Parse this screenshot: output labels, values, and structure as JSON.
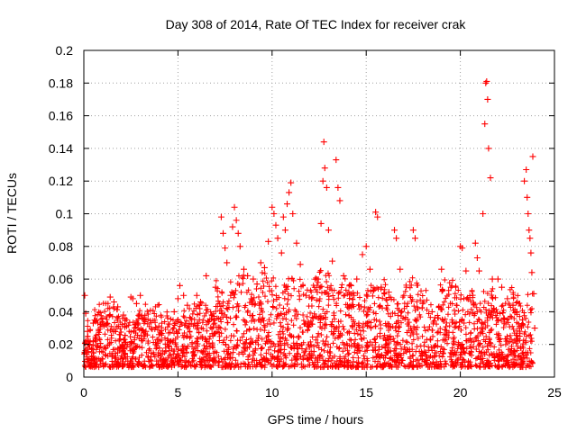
{
  "chart_data": {
    "type": "scatter",
    "title": "Day 308 of 2014, Rate Of TEC Index for receiver crak",
    "xlabel": "GPS time / hours",
    "ylabel": "ROTI / TECUs",
    "xlim": [
      0,
      25
    ],
    "ylim": [
      0,
      0.2
    ],
    "xticks": [
      0,
      5,
      10,
      15,
      20,
      25
    ],
    "xtick_labels": [
      "0",
      "5",
      "10",
      "15",
      "20",
      "25"
    ],
    "yticks": [
      0,
      0.02,
      0.04,
      0.06,
      0.08,
      0.1,
      0.12,
      0.14,
      0.16,
      0.18,
      0.2
    ],
    "ytick_labels": [
      "0",
      "0.02",
      "0.04",
      "0.06",
      "0.08",
      "0.1",
      "0.12",
      "0.14",
      "0.16",
      "0.18",
      "0.2"
    ],
    "grid": true,
    "marker": "+",
    "series": [
      {
        "name": "ROTI",
        "color": "#ff0000",
        "points": [
          [
            0.05,
            0.05
          ],
          [
            0.1,
            0.039
          ],
          [
            0.2,
            0.028
          ],
          [
            0.3,
            0.02
          ],
          [
            0.5,
            0.033
          ],
          [
            1.0,
            0.036
          ],
          [
            1.2,
            0.032
          ],
          [
            1.4,
            0.049
          ],
          [
            1.6,
            0.046
          ],
          [
            1.8,
            0.043
          ],
          [
            2.1,
            0.038
          ],
          [
            2.5,
            0.049
          ],
          [
            2.6,
            0.048
          ],
          [
            2.8,
            0.045
          ],
          [
            3.0,
            0.05
          ],
          [
            3.3,
            0.028
          ],
          [
            4.0,
            0.026
          ],
          [
            4.5,
            0.027
          ],
          [
            4.8,
            0.04
          ],
          [
            5.0,
            0.048
          ],
          [
            5.1,
            0.056
          ],
          [
            5.3,
            0.05
          ],
          [
            5.5,
            0.044
          ],
          [
            6.0,
            0.05
          ],
          [
            6.2,
            0.046
          ],
          [
            6.5,
            0.062
          ],
          [
            7.0,
            0.055
          ],
          [
            7.2,
            0.045
          ],
          [
            7.3,
            0.098
          ],
          [
            7.4,
            0.088
          ],
          [
            7.5,
            0.079
          ],
          [
            7.6,
            0.07
          ],
          [
            7.8,
            0.05
          ],
          [
            7.9,
            0.092
          ],
          [
            8.0,
            0.104
          ],
          [
            8.1,
            0.096
          ],
          [
            8.2,
            0.088
          ],
          [
            8.3,
            0.08
          ],
          [
            8.5,
            0.066
          ],
          [
            8.7,
            0.062
          ],
          [
            9.0,
            0.06
          ],
          [
            9.2,
            0.057
          ],
          [
            9.4,
            0.07
          ],
          [
            9.6,
            0.067
          ],
          [
            9.8,
            0.083
          ],
          [
            10.0,
            0.104
          ],
          [
            10.1,
            0.1
          ],
          [
            10.2,
            0.093
          ],
          [
            10.3,
            0.085
          ],
          [
            10.5,
            0.076
          ],
          [
            10.6,
            0.098
          ],
          [
            10.7,
            0.09
          ],
          [
            10.8,
            0.106
          ],
          [
            10.9,
            0.113
          ],
          [
            11.0,
            0.119
          ],
          [
            11.1,
            0.1
          ],
          [
            11.3,
            0.082
          ],
          [
            11.5,
            0.069
          ],
          [
            11.8,
            0.05
          ],
          [
            12.1,
            0.048
          ],
          [
            12.4,
            0.052
          ],
          [
            12.6,
            0.094
          ],
          [
            12.7,
            0.12
          ],
          [
            12.75,
            0.144
          ],
          [
            12.8,
            0.128
          ],
          [
            12.9,
            0.116
          ],
          [
            13.0,
            0.09
          ],
          [
            13.2,
            0.071
          ],
          [
            13.4,
            0.133
          ],
          [
            13.5,
            0.116
          ],
          [
            13.6,
            0.108
          ],
          [
            13.8,
            0.062
          ],
          [
            14.2,
            0.056
          ],
          [
            14.5,
            0.06
          ],
          [
            14.8,
            0.075
          ],
          [
            15.0,
            0.08
          ],
          [
            15.2,
            0.066
          ],
          [
            15.5,
            0.101
          ],
          [
            15.6,
            0.098
          ],
          [
            15.8,
            0.055
          ],
          [
            16.2,
            0.052
          ],
          [
            16.5,
            0.09
          ],
          [
            16.6,
            0.085
          ],
          [
            16.8,
            0.066
          ],
          [
            17.0,
            0.05
          ],
          [
            17.5,
            0.09
          ],
          [
            17.6,
            0.085
          ],
          [
            18.0,
            0.045
          ],
          [
            18.5,
            0.04
          ],
          [
            19.0,
            0.066
          ],
          [
            19.5,
            0.055
          ],
          [
            20.0,
            0.08
          ],
          [
            20.1,
            0.079
          ],
          [
            20.3,
            0.065
          ],
          [
            20.8,
            0.082
          ],
          [
            20.9,
            0.073
          ],
          [
            21.0,
            0.065
          ],
          [
            21.2,
            0.1
          ],
          [
            21.3,
            0.155
          ],
          [
            21.35,
            0.18
          ],
          [
            21.4,
            0.181
          ],
          [
            21.45,
            0.17
          ],
          [
            21.5,
            0.14
          ],
          [
            21.6,
            0.122
          ],
          [
            21.7,
            0.06
          ],
          [
            22.0,
            0.06
          ],
          [
            22.2,
            0.055
          ],
          [
            22.5,
            0.048
          ],
          [
            22.8,
            0.044
          ],
          [
            23.0,
            0.04
          ],
          [
            23.3,
            0.035
          ],
          [
            23.4,
            0.12
          ],
          [
            23.5,
            0.127
          ],
          [
            23.55,
            0.11
          ],
          [
            23.6,
            0.1
          ],
          [
            23.65,
            0.09
          ],
          [
            23.7,
            0.085
          ],
          [
            23.75,
            0.076
          ],
          [
            23.8,
            0.064
          ],
          [
            23.85,
            0.135
          ],
          [
            23.9,
            0.051
          ],
          [
            23.95,
            0.03
          ]
        ]
      }
    ]
  }
}
